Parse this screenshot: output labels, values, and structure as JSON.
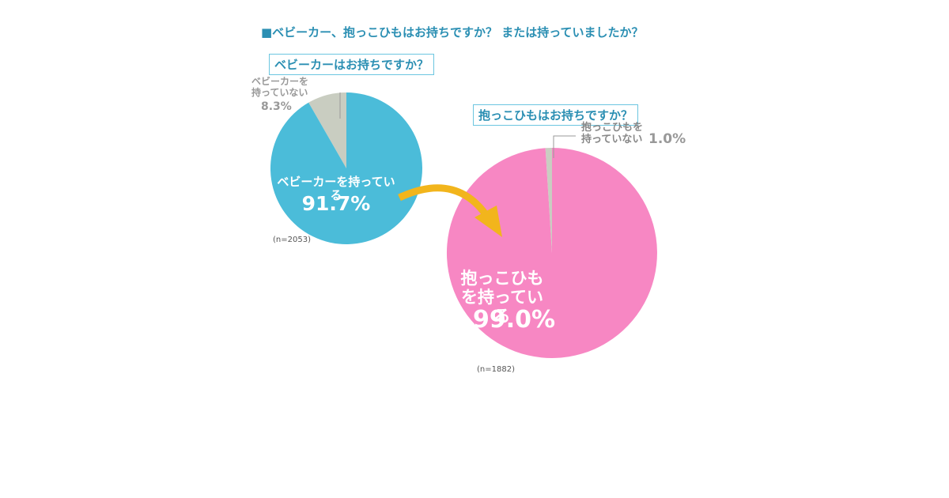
{
  "title": "■ベビーカー、抱っこひもはお持ちですか？ または持っていましたか？",
  "chart_data": [
    {
      "type": "pie",
      "title": "ベビーカーはお持ちですか？",
      "categories": [
        "ベビーカーを持っている",
        "ベビーカーを持っていない"
      ],
      "values": [
        91.7,
        8.3
      ],
      "value_labels": [
        "91.7%",
        "8.3%"
      ],
      "colors": [
        "#4bbcd9",
        "#c9cdc1"
      ],
      "note": "(n=2053)"
    },
    {
      "type": "pie",
      "title": "抱っこひもはお持ちですか？",
      "categories": [
        "抱っこひもを持っている",
        "抱っこひもを持っていない"
      ],
      "values": [
        99.0,
        1.0
      ],
      "value_labels": [
        "99.0%",
        "1.0%"
      ],
      "colors": [
        "#f787c3",
        "#c9cdc1"
      ],
      "note": "(n=1882)"
    }
  ]
}
